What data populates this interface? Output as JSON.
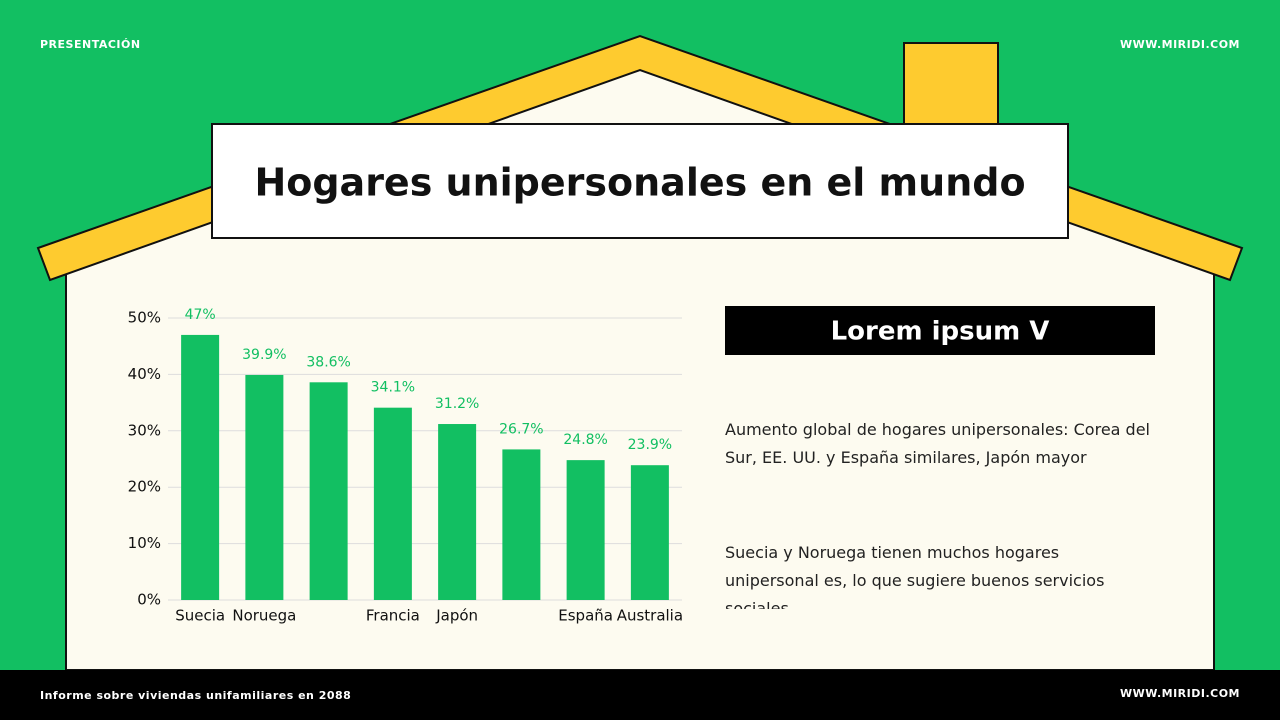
{
  "header": {
    "left": "PRESENTACIÓN",
    "right": "WWW.MIRIDI.COM"
  },
  "footer": {
    "left": "Informe sobre viviendas unifamiliares en 2088",
    "right": "WWW.MIRIDI.COM"
  },
  "title": "Hogares unipersonales en el mundo",
  "panel": {
    "heading": "Lorem ipsum V",
    "paragraphs": [
      "Aumento global de hogares unipersonales: Corea del Sur, EE. UU. y España similares, Japón mayor",
      "Suecia y Noruega tienen muchos hogares unipersonal es, lo que sugiere buenos servicios sociales."
    ]
  },
  "chart_data": {
    "type": "bar",
    "categories": [
      "Suecia",
      "Noruega",
      null,
      "Francia",
      "Japón",
      null,
      "España",
      "Australia"
    ],
    "values": [
      47,
      39.9,
      38.6,
      34.1,
      31.2,
      26.7,
      24.8,
      23.9
    ],
    "value_labels": [
      "47%",
      "39.9%",
      "38.6%",
      "34.1%",
      "31.2%",
      "26.7%",
      "24.8%",
      "23.9%"
    ],
    "color": "#12bf62",
    "ylim": [
      0,
      50
    ],
    "yticks": [
      {
        "value": 0,
        "label": "0%"
      },
      {
        "value": 10,
        "label": "10%"
      },
      {
        "value": 20,
        "label": "20%"
      },
      {
        "value": 30,
        "label": "30%"
      },
      {
        "value": 40,
        "label": "40%"
      },
      {
        "value": 50,
        "label": "50%"
      }
    ],
    "grid": true
  }
}
